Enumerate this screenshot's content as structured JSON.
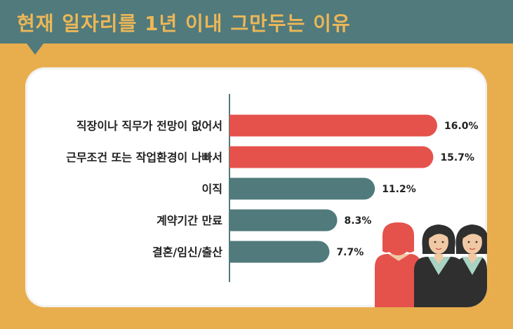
{
  "header": {
    "title": "현재 일자리를 1년 이내 그만두는 이유"
  },
  "colors": {
    "background": "#e8ae4e",
    "banner": "#507a7c",
    "title_text": "#ecb757",
    "bar_red": "#e5524c",
    "bar_teal": "#507a7c",
    "card": "#ffffff"
  },
  "chart_data": {
    "type": "bar",
    "orientation": "horizontal",
    "title": "현재 일자리를 1년 이내 그만두는 이유",
    "categories": [
      "직장이나 직무가 전망이 없어서",
      "근무조건 또는 작업환경이 나빠서",
      "이직",
      "계약기간 만료",
      "결혼/임신/출산"
    ],
    "values": [
      16.0,
      15.7,
      11.2,
      8.3,
      7.7
    ],
    "value_labels": [
      "16.0%",
      "15.7%",
      "11.2%",
      "8.3%",
      "7.7%"
    ],
    "bar_colors": [
      "#e5524c",
      "#e5524c",
      "#507a7c",
      "#507a7c",
      "#507a7c"
    ],
    "xlim": [
      0,
      16.0
    ],
    "grid": false,
    "legend": false
  }
}
